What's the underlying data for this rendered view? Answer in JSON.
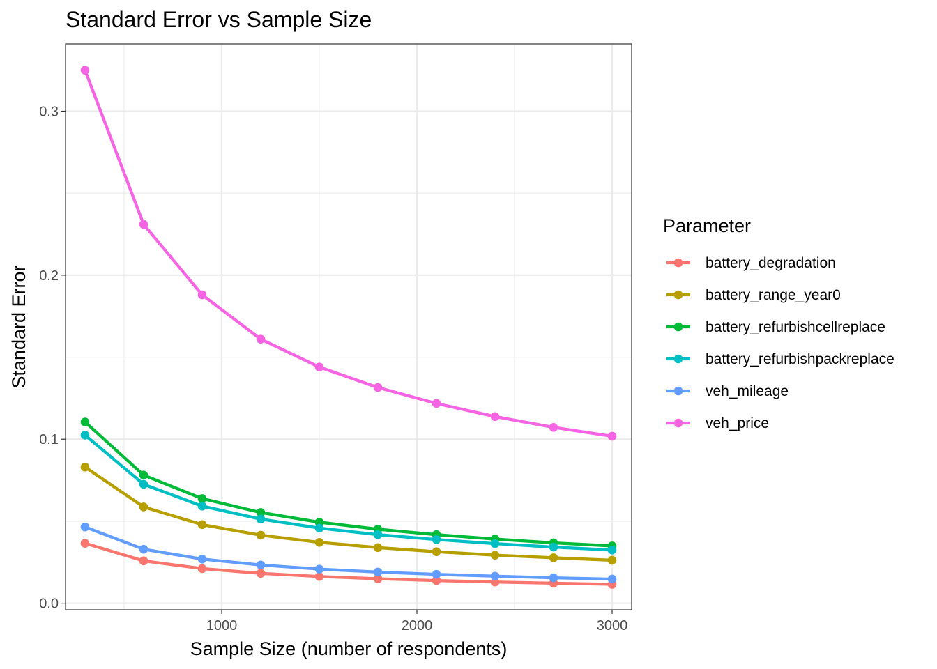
{
  "chart_data": {
    "type": "line",
    "title": "Standard Error vs Sample Size",
    "xlabel": "Sample Size (number of respondents)",
    "ylabel": "Standard Error",
    "xlim": [
      200,
      3100
    ],
    "ylim": [
      -0.004,
      0.341
    ],
    "x_ticks": [
      1000,
      2000,
      3000
    ],
    "x_tick_labels": [
      "1000",
      "2000",
      "3000"
    ],
    "y_ticks": [
      0.0,
      0.1,
      0.2,
      0.3
    ],
    "y_tick_labels": [
      "0.0",
      "0.1",
      "0.2",
      "0.3"
    ],
    "grid": true,
    "legend_position": "right",
    "legend_title": "Parameter",
    "x": [
      300,
      600,
      900,
      1200,
      1500,
      1800,
      2100,
      2400,
      2700,
      3000
    ],
    "series": [
      {
        "name": "battery_degradation",
        "color": "#F8766D",
        "values": [
          0.0365,
          0.0258,
          0.0211,
          0.0182,
          0.0163,
          0.0149,
          0.0138,
          0.0129,
          0.0122,
          0.0115
        ]
      },
      {
        "name": "battery_range_year0",
        "color": "#B79F00",
        "values": [
          0.083,
          0.0587,
          0.0479,
          0.0415,
          0.0371,
          0.0339,
          0.0314,
          0.0293,
          0.0277,
          0.0262
        ]
      },
      {
        "name": "battery_refurbishcellreplace",
        "color": "#00BA38",
        "values": [
          0.1105,
          0.0781,
          0.0638,
          0.0553,
          0.0494,
          0.0451,
          0.0418,
          0.0391,
          0.0368,
          0.0349
        ]
      },
      {
        "name": "battery_refurbishpackreplace",
        "color": "#00BFC4",
        "values": [
          0.1025,
          0.0725,
          0.0592,
          0.0513,
          0.0458,
          0.0418,
          0.0388,
          0.0363,
          0.0342,
          0.0324
        ]
      },
      {
        "name": "veh_mileage",
        "color": "#619CFF",
        "values": [
          0.0465,
          0.0329,
          0.0269,
          0.0233,
          0.0208,
          0.019,
          0.0176,
          0.0165,
          0.0155,
          0.0147
        ]
      },
      {
        "name": "veh_price",
        "color": "#F564E3",
        "values": [
          0.325,
          0.231,
          0.188,
          0.161,
          0.144,
          0.1315,
          0.1218,
          0.1138,
          0.1072,
          0.1018
        ]
      }
    ]
  }
}
